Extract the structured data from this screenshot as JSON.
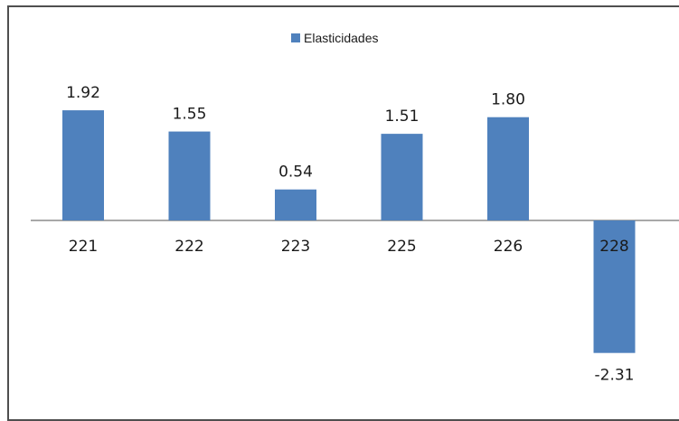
{
  "chart_data": {
    "type": "bar",
    "categories": [
      "221",
      "222",
      "223",
      "225",
      "226",
      "228"
    ],
    "series": [
      {
        "name": "Elasticidades",
        "values": [
          1.92,
          1.55,
          0.54,
          1.51,
          1.8,
          -2.31
        ],
        "color": "#4f81bd"
      }
    ],
    "data_labels": [
      "1.92",
      "1.55",
      "0.54",
      "1.51",
      "1.80",
      "-2.31"
    ],
    "legend": {
      "position": "top",
      "label": "Elasticidades"
    },
    "grid": false,
    "ylim": [
      -2.31,
      1.92
    ]
  }
}
